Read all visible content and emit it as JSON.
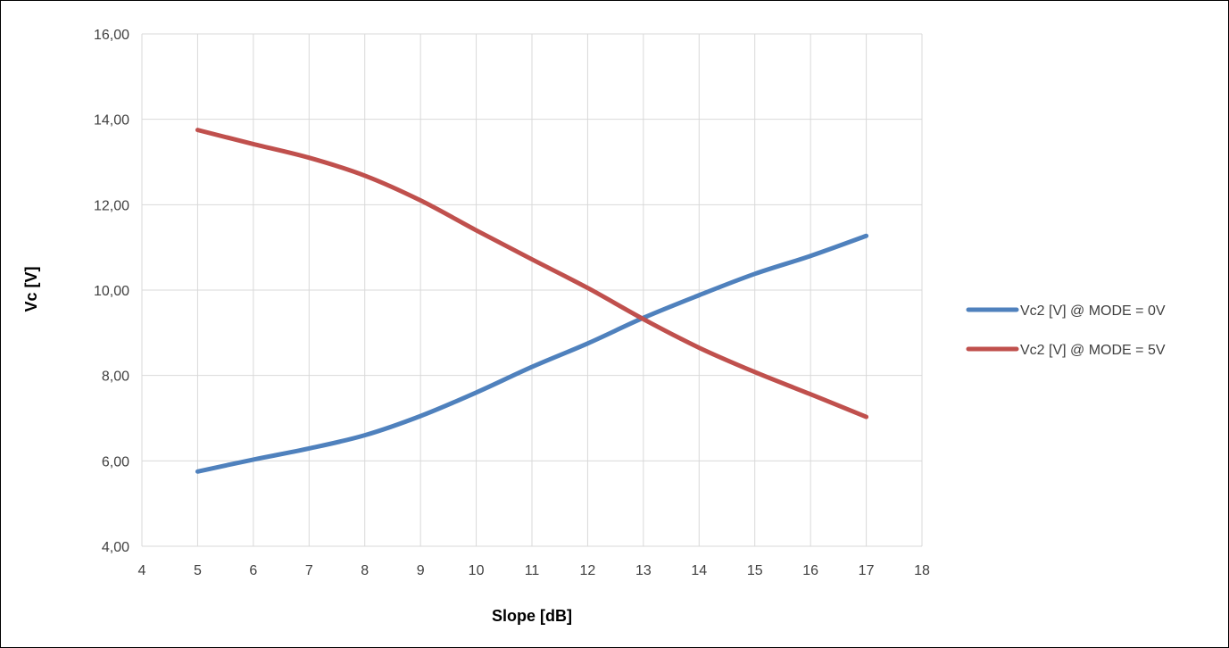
{
  "chart_data": {
    "type": "line",
    "title": "",
    "xlabel": "Slope [dB]",
    "ylabel": "Vc [V]",
    "xlim": [
      4,
      18
    ],
    "ylim": [
      4,
      16
    ],
    "xticks": [
      4,
      5,
      6,
      7,
      8,
      9,
      10,
      11,
      12,
      13,
      14,
      15,
      16,
      17,
      18
    ],
    "xtick_labels": [
      "4",
      "5",
      "6",
      "7",
      "8",
      "9",
      "10",
      "11",
      "12",
      "13",
      "14",
      "15",
      "16",
      "17",
      "18"
    ],
    "yticks": [
      4,
      6,
      8,
      10,
      12,
      14,
      16
    ],
    "ytick_labels": [
      "4,00",
      "6,00",
      "8,00",
      "10,00",
      "12,00",
      "14,00",
      "16,00"
    ],
    "grid": true,
    "legend_position": "right",
    "x": [
      5,
      6,
      7,
      8,
      9,
      10,
      11,
      12,
      13,
      14,
      15,
      16,
      17
    ],
    "series": [
      {
        "name": "Vc2 [V] @ MODE = 0V",
        "color": "#4f81bd",
        "values": [
          5.75,
          6.03,
          6.29,
          6.6,
          7.05,
          7.6,
          8.2,
          8.75,
          9.35,
          9.88,
          10.38,
          10.8,
          11.27
        ]
      },
      {
        "name": "Vc2 [V] @ MODE = 5V",
        "color": "#c0504d",
        "values": [
          13.75,
          13.42,
          13.1,
          12.68,
          12.1,
          11.4,
          10.72,
          10.05,
          9.32,
          8.65,
          8.08,
          7.56,
          7.03
        ]
      }
    ]
  }
}
